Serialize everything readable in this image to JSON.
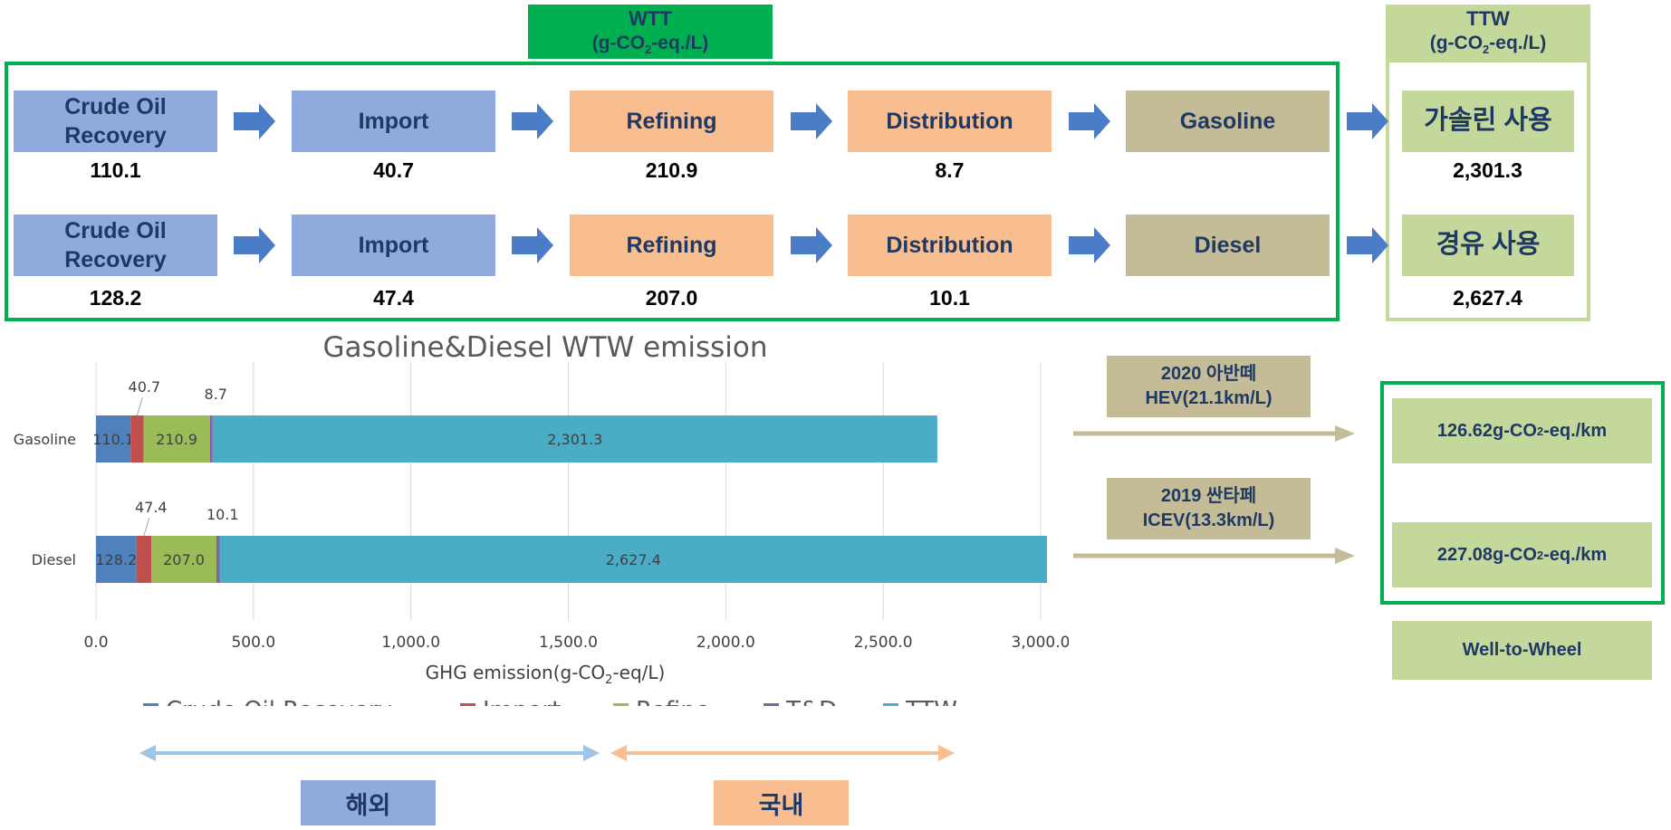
{
  "wtt_header": {
    "title": "WTT",
    "unit_pre": "(g-CO",
    "unit_sub": "2",
    "unit_post": "-eq./L)"
  },
  "ttw_header": {
    "title": "TTW",
    "unit_pre": "(g-CO",
    "unit_sub": "2",
    "unit_post": "-eq./L)"
  },
  "process": {
    "gasoline_row": [
      {
        "label": "Crude Oil Recovery",
        "value": "110.1",
        "color": "#8faadc"
      },
      {
        "label": "Import",
        "value": "40.7",
        "color": "#8faadc"
      },
      {
        "label": "Refining",
        "value": "210.9",
        "color": "#f8be90"
      },
      {
        "label": "Distribution",
        "value": "8.7",
        "color": "#f8be90"
      },
      {
        "label": "Gasoline",
        "value": "",
        "color": "#c4bc96"
      }
    ],
    "diesel_row": [
      {
        "label": "Crude Oil Recovery",
        "value": "128.2",
        "color": "#8faadc"
      },
      {
        "label": "Import",
        "value": "47.4",
        "color": "#8faadc"
      },
      {
        "label": "Refining",
        "value": "207.0",
        "color": "#f8be90"
      },
      {
        "label": "Distribution",
        "value": "10.1",
        "color": "#f8be90"
      },
      {
        "label": "Diesel",
        "value": "",
        "color": "#c4bc96"
      }
    ],
    "ttw_gasoline": {
      "label": "가솔린 사용",
      "value": "2,301.3"
    },
    "ttw_diesel": {
      "label": "경유 사용",
      "value": "2,627.4"
    }
  },
  "vehicles": [
    {
      "line1": "2020 아반떼",
      "line2": "HEV(21.1km/L)",
      "result_pre": "126.62g-CO",
      "result_sub": "2",
      "result_post": "-eq./km"
    },
    {
      "line1": "2019 싼타페",
      "line2": "ICEV(13.3km/L)",
      "result_pre": "227.08g-CO",
      "result_sub": "2",
      "result_post": "-eq./km"
    }
  ],
  "wtw_label": "Well-to-Wheel",
  "scope_labels": {
    "overseas": "해외",
    "domestic": "국내"
  },
  "colors": {
    "green_frame": "#00b050",
    "arrow_blue": "#4a7cc7",
    "navy_text": "#1f3864"
  },
  "chart_data": {
    "type": "bar",
    "orientation": "horizontal",
    "stacked": true,
    "title": "Gasoline&Diesel WTW emission",
    "xlabel_pre": "GHG emission(g-CO",
    "xlabel_sub": "2",
    "xlabel_post": "-eq/L)",
    "categories": [
      "Gasoline",
      "Diesel"
    ],
    "xlim": [
      0,
      3000
    ],
    "xticks": [
      "0.0",
      "500.0",
      "1,000.0",
      "1,500.0",
      "2,000.0",
      "2,500.0",
      "3,000.0"
    ],
    "grid": true,
    "legend_position": "bottom",
    "series": [
      {
        "name": "Crude Oil Recovery",
        "color": "#4f81bd",
        "values": [
          110.1,
          128.2
        ],
        "labels": [
          "110.1",
          "128.2"
        ]
      },
      {
        "name": "Import",
        "color": "#c0504d",
        "values": [
          40.7,
          47.4
        ],
        "labels": [
          "40.7",
          "47.4"
        ]
      },
      {
        "name": "Refine",
        "color": "#9bbb59",
        "values": [
          210.9,
          207.0
        ],
        "labels": [
          "210.9",
          "207.0"
        ]
      },
      {
        "name": "T&D",
        "color": "#8064a2",
        "values": [
          8.7,
          10.1
        ],
        "labels": [
          "8.7",
          "10.1"
        ]
      },
      {
        "name": "TTW",
        "color": "#4bacc6",
        "values": [
          2301.3,
          2627.4
        ],
        "labels": [
          "2,301.3",
          "2,627.4"
        ]
      }
    ]
  }
}
